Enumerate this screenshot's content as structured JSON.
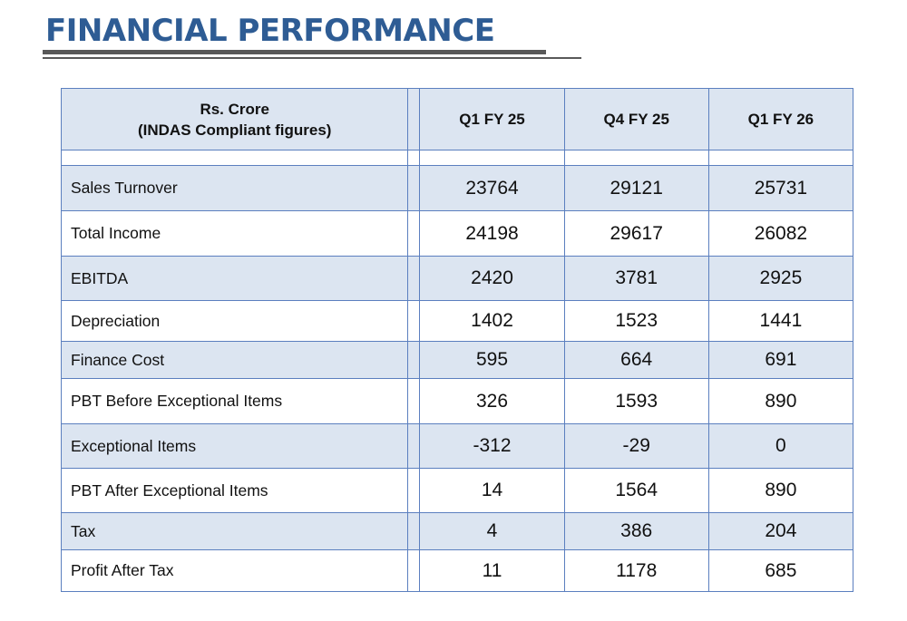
{
  "slide": {
    "title": "FINANCIAL PERFORMANCE"
  },
  "table": {
    "header": {
      "label_line1": "Rs. Crore",
      "label_line2": "(INDAS Compliant figures)",
      "columns": [
        "Q1 FY 25",
        "Q4 FY 25",
        "Q1 FY 26"
      ]
    },
    "rows": [
      {
        "label": "Sales Turnover",
        "values": [
          "23764",
          "29121",
          "25731"
        ]
      },
      {
        "label": "Total Income",
        "values": [
          "24198",
          "29617",
          "26082"
        ]
      },
      {
        "label": "EBITDA",
        "values": [
          "2420",
          "3781",
          "2925"
        ]
      },
      {
        "label": "Depreciation",
        "values": [
          "1402",
          "1523",
          "1441"
        ]
      },
      {
        "label": "Finance Cost",
        "values": [
          "595",
          "664",
          "691"
        ]
      },
      {
        "label": "PBT Before Exceptional Items",
        "values": [
          "326",
          "1593",
          "890"
        ]
      },
      {
        "label": "Exceptional Items",
        "values": [
          "-312",
          "-29",
          "0"
        ]
      },
      {
        "label": "PBT After Exceptional Items",
        "values": [
          "14",
          "1564",
          "890"
        ]
      },
      {
        "label": "Tax",
        "values": [
          "4",
          "386",
          "204"
        ]
      },
      {
        "label": "Profit After Tax",
        "values": [
          "11",
          "1178",
          "685"
        ]
      }
    ]
  },
  "colors": {
    "title": "#2e5c94",
    "rule": "#595959",
    "shade": "#dce5f1",
    "border": "#5b7fbf"
  }
}
